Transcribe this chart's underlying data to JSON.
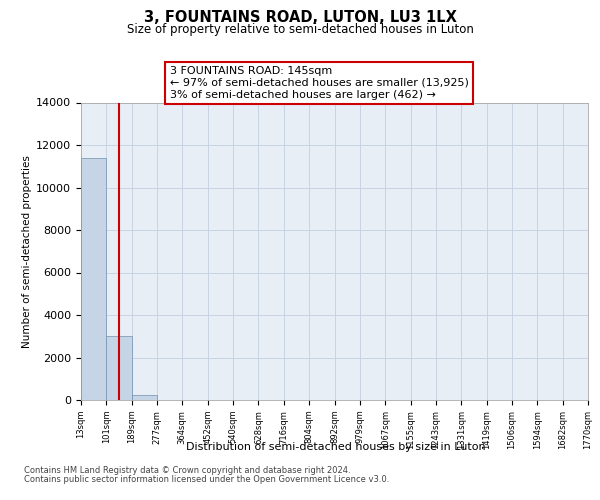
{
  "title": "3, FOUNTAINS ROAD, LUTON, LU3 1LX",
  "subtitle": "Size of property relative to semi-detached houses in Luton",
  "xlabel": "Distribution of semi-detached houses by size in Luton",
  "ylabel": "Number of semi-detached properties",
  "annotation_line1": "3 FOUNTAINS ROAD: 145sqm",
  "annotation_line2": "← 97% of semi-detached houses are smaller (13,925)",
  "annotation_line3": "3% of semi-detached houses are larger (462) →",
  "bin_edges": [
    13,
    101,
    189,
    277,
    364,
    452,
    540,
    628,
    716,
    804,
    892,
    979,
    1067,
    1155,
    1243,
    1331,
    1419,
    1506,
    1594,
    1682,
    1770
  ],
  "bin_counts": [
    11380,
    3020,
    215,
    0,
    0,
    0,
    0,
    0,
    0,
    0,
    0,
    0,
    0,
    0,
    0,
    0,
    0,
    0,
    0,
    0
  ],
  "bar_color": "#c5d5e5",
  "bar_edge_color": "#7090b0",
  "grid_color": "#c8d4e2",
  "background_color": "#e8eef5",
  "vline_color": "#cc0000",
  "vline_x": 145,
  "ylim_max": 14000,
  "yticks": [
    0,
    2000,
    4000,
    6000,
    8000,
    10000,
    12000,
    14000
  ],
  "footer_line1": "Contains HM Land Registry data © Crown copyright and database right 2024.",
  "footer_line2": "Contains public sector information licensed under the Open Government Licence v3.0."
}
